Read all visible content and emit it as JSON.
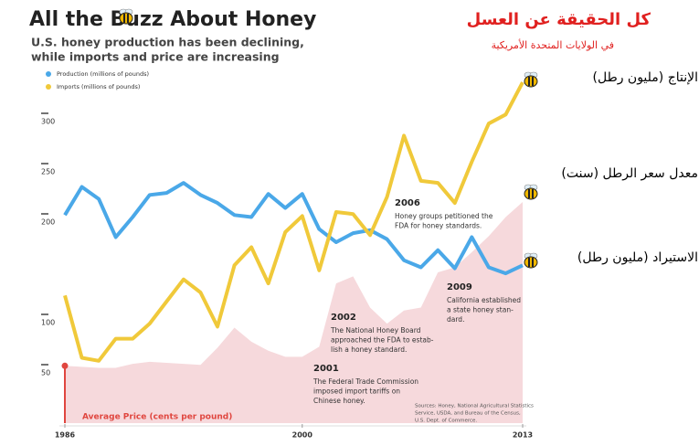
{
  "chart_data": {
    "type": "line",
    "title": "All the Buzz About Honey",
    "subtitle": [
      "U.S. honey production has been declining,",
      "while imports and price are increasing"
    ],
    "arabic_title": "كل الحقيقة عن العسل",
    "arabic_subtitle": "في الولايات المتحدة الأمريكية",
    "x": [
      1986,
      1987,
      1988,
      1989,
      1990,
      1991,
      1992,
      1993,
      1994,
      1995,
      1996,
      1997,
      1998,
      1999,
      2000,
      2001,
      2002,
      2003,
      2004,
      2005,
      2006,
      2007,
      2008,
      2009,
      2010,
      2011,
      2012,
      2013
    ],
    "xlim": [
      1986,
      2013
    ],
    "xticks": [
      1986,
      2000,
      2013
    ],
    "ylim": [
      0,
      330
    ],
    "yticks": [
      50,
      100,
      200,
      250,
      300
    ],
    "series": [
      {
        "name": "Production (millions of pounds)",
        "arabic_name": "الإنتاج (مليون رطل)",
        "color": "#4aa8e8",
        "style": "line",
        "values": [
          207,
          235,
          223,
          185,
          205,
          227,
          229,
          239,
          227,
          219,
          207,
          205,
          228,
          214,
          228,
          193,
          180,
          189,
          192,
          183,
          162,
          155,
          172,
          154,
          185,
          155,
          149,
          157
        ]
      },
      {
        "name": "Imports (millions of pounds)",
        "arabic_name": "الاستيراد (مليون رطل)",
        "color": "#f0c93a",
        "style": "line",
        "values": [
          127,
          65,
          62,
          84,
          84,
          99,
          121,
          143,
          130,
          96,
          157,
          175,
          139,
          190,
          206,
          152,
          210,
          208,
          187,
          225,
          286,
          241,
          239,
          219,
          260,
          298,
          307,
          339
        ]
      },
      {
        "name": "Average Price (cents per pound)",
        "arabic_name": "معدل سعر الرطل (سنت)",
        "color": "#f6d9dc",
        "marker_color": "#e0463f",
        "style": "area",
        "values": [
          57,
          56,
          55,
          55,
          59,
          61,
          60,
          59,
          58,
          75,
          95,
          81,
          72,
          66,
          66,
          76,
          139,
          146,
          115,
          99,
          112,
          115,
          150,
          155,
          170,
          186,
          205,
          220
        ]
      }
    ],
    "annotations": [
      {
        "year": "2006",
        "lines": [
          "Honey groups petitioned the",
          "FDA for honey standards."
        ]
      },
      {
        "year": "2002",
        "lines": [
          "The National Honey Board",
          "approached the FDA to estab-",
          "lish a honey standard."
        ]
      },
      {
        "year": "2001",
        "lines": [
          "The Federal Trade Commission",
          "imposed import tariffs on",
          "Chinese honey."
        ]
      },
      {
        "year": "2009",
        "lines": [
          "California established",
          "a state honey stan-",
          "dard."
        ]
      }
    ],
    "source": [
      "Sources: Honey, National Agricultural Statistics",
      "Service, USDA, and Bureau of the Census,",
      "U.S. Dept. of Commerce."
    ]
  }
}
